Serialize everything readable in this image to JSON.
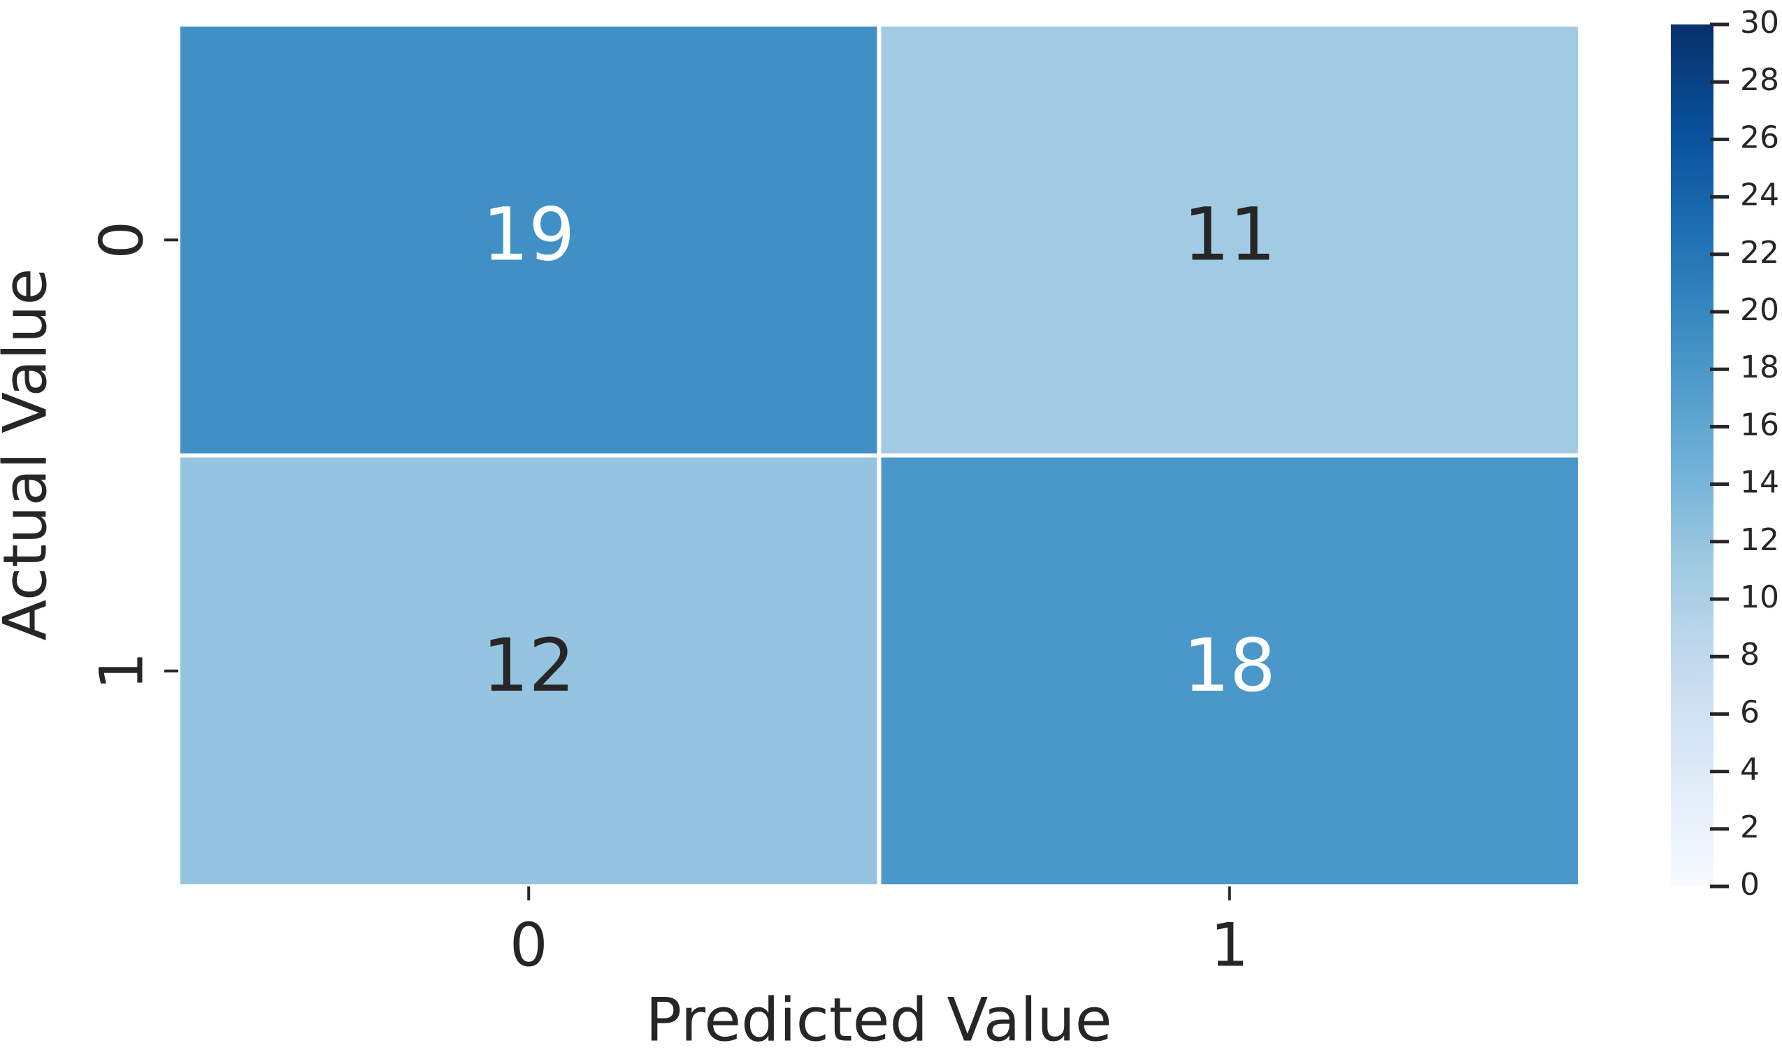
{
  "chart_data": {
    "type": "heatmap",
    "x_label": "Predicted Value",
    "y_label": "Actual Value",
    "x_categories": [
      "0",
      "1"
    ],
    "y_categories": [
      "0",
      "1"
    ],
    "values": [
      [
        19,
        11
      ],
      [
        12,
        18
      ]
    ],
    "colormap": [
      "#f7fbff",
      "#deebf7",
      "#c6dbef",
      "#9ecae1",
      "#6baed6",
      "#4292c6",
      "#2171b5",
      "#08519c",
      "#08306b"
    ],
    "clim": [
      0,
      30
    ],
    "cticks": [
      0,
      2,
      4,
      6,
      8,
      10,
      12,
      14,
      16,
      18,
      20,
      22,
      24,
      26,
      28,
      30
    ]
  }
}
